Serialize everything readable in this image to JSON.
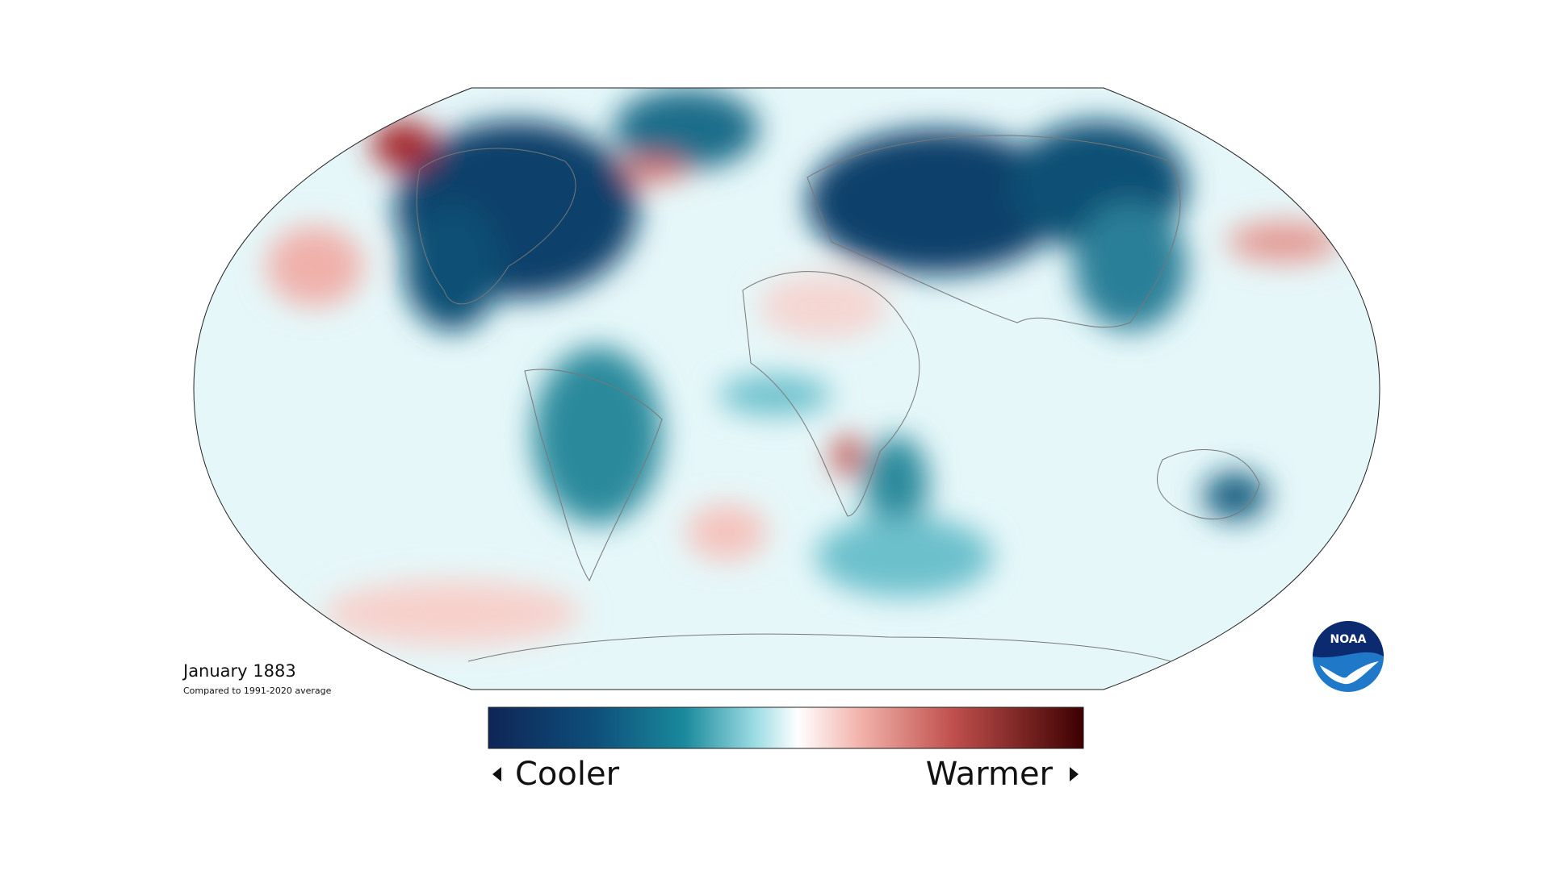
{
  "map": {
    "title": "January 1883",
    "subtitle": "Compared to 1991-2020 average",
    "legend": {
      "low_label": "Cooler",
      "high_label": "Warmer"
    },
    "logo": "NOAA"
  }
}
